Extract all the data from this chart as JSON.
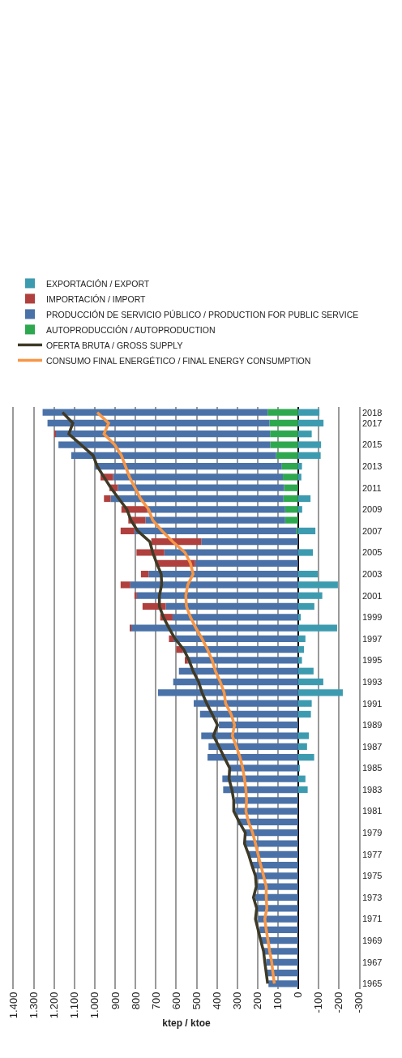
{
  "chart_data": {
    "type": "bar",
    "stacked": true,
    "orientation": "horizontal",
    "xlabel": "ktep / ktoe",
    "xlim": [
      1400,
      -300
    ],
    "xticks": [
      {
        "value": 1400,
        "label": "1.400"
      },
      {
        "value": 1300,
        "label": "1.300"
      },
      {
        "value": 1200,
        "label": "1.200"
      },
      {
        "value": 1100,
        "label": "1.100"
      },
      {
        "value": 1000,
        "label": "1.000"
      },
      900,
      800,
      700,
      600,
      500,
      400,
      300,
      200,
      100,
      0,
      -100,
      -200,
      -300
    ],
    "grid": "x",
    "legend": "top",
    "categories": [
      "2018",
      "2017",
      null,
      "2015",
      null,
      "2013",
      null,
      "2011",
      null,
      "2009",
      null,
      "2007",
      null,
      "2005",
      null,
      "2003",
      null,
      "2001",
      null,
      "1999",
      null,
      "1997",
      null,
      "1995",
      null,
      "1993",
      null,
      "1991",
      null,
      "1989",
      null,
      "1987",
      null,
      "1985",
      null,
      "1983",
      null,
      "1981",
      null,
      "1979",
      null,
      "1977",
      null,
      "1975",
      null,
      "1973",
      null,
      "1971",
      null,
      "1969",
      null,
      "1967",
      null,
      "1965"
    ],
    "series": [
      {
        "name": "AUTOPRODUCCIÓN / AUTOPRODUCTION",
        "color": "#2ea84f",
        "values": [
          150,
          141,
          138,
          137,
          108,
          80,
          75,
          69,
          72,
          64,
          64,
          8,
          null,
          null,
          null,
          null,
          null,
          null,
          null,
          null,
          null,
          null,
          null,
          null,
          null,
          null,
          null,
          null,
          null,
          null,
          null,
          null,
          null,
          null,
          null,
          null,
          null,
          null,
          null,
          null,
          null,
          null,
          null,
          null,
          null,
          null,
          null,
          null,
          null,
          null,
          null,
          null,
          null,
          null
        ]
      },
      {
        "name": "PRODUCCIÓN DE SERVICIO PÚBLICO / PRODUCTION FOR PUBLIC SERVICE",
        "color": "#4a72a8",
        "values": [
          1108,
          1093,
          1055,
          1043,
          1009,
          920,
          836,
          819,
          851,
          679,
          688,
          798,
          477,
          659,
          507,
          736,
          826,
          794,
          652,
          618,
          822,
          614,
          567,
          543,
          587,
          615,
          690,
          514,
          483,
          390,
          477,
          441,
          446,
          337,
          373,
          369,
          310,
          310,
          297,
          264,
          264,
          246,
          230,
          210,
          204,
          213,
          204,
          197,
          190,
          184,
          170,
          157,
          157,
          146
        ]
      },
      {
        "name": "IMPORTACIÓN / IMPORT",
        "color": "#b0403e",
        "values": [
          null,
          null,
          5,
          null,
          null,
          null,
          62,
          41,
          33,
          127,
          84,
          68,
          246,
          137,
          192,
          38,
          48,
          12,
          114,
          61,
          6,
          22,
          33,
          15,
          null,
          null,
          null,
          null,
          null,
          null,
          null,
          null,
          null,
          null,
          null,
          null,
          null,
          null,
          null,
          null,
          null,
          null,
          null,
          null,
          null,
          null,
          null,
          null,
          null,
          null,
          null,
          null,
          null,
          null
        ]
      },
      {
        "name": "EXPORTACIÓN / EXPORT",
        "color": "#3d9bb0",
        "values": [
          -105,
          -125,
          -67,
          -113,
          -111,
          -19,
          -16,
          null,
          -61,
          -20,
          null,
          -85,
          null,
          -73,
          null,
          -97,
          -196,
          -119,
          -80,
          -13,
          -192,
          -36,
          -29,
          -19,
          -76,
          -124,
          -220,
          -67,
          -63,
          null,
          -53,
          -44,
          -79,
          -9,
          -36,
          -47,
          null,
          null,
          null,
          null,
          null,
          null,
          null,
          null,
          null,
          null,
          null,
          null,
          null,
          null,
          null,
          null,
          null,
          null
        ]
      },
      {
        "name": "OFERTA BRUTA / GROSS SUPPLY",
        "type": "line",
        "color": "#3f3a26",
        "values": [
          1160,
          1109,
          1129,
          1069,
          1009,
          989,
          956,
          922,
          883,
          843,
          823,
          790,
          730,
          716,
          696,
          674,
          672,
          683,
          683,
          663,
          636,
          606,
          563,
          537,
          517,
          490,
          473,
          450,
          423,
          397,
          417,
          390,
          364,
          337,
          340,
          326,
          317,
          317,
          290,
          260,
          264,
          244,
          228,
          210,
          206,
          220,
          204,
          210,
          197,
          184,
          170,
          164,
          157,
          150
        ]
      },
      {
        "name": "CONSUMO FINAL ENERGÉTICO / FINAL ENERGY CONSUMPTION",
        "type": "line",
        "color": "#f79646",
        "values": [
          989,
          933,
          956,
          903,
          870,
          850,
          830,
          803,
          776,
          736,
          716,
          670,
          617,
          557,
          530,
          517,
          543,
          553,
          550,
          530,
          503,
          473,
          446,
          423,
          407,
          383,
          364,
          357,
          330,
          313,
          324,
          304,
          286,
          273,
          264,
          257,
          254,
          257,
          244,
          224,
          210,
          197,
          184,
          170,
          157,
          157,
          154,
          164,
          157,
          148,
          140,
          130,
          124,
          117
        ]
      }
    ]
  }
}
